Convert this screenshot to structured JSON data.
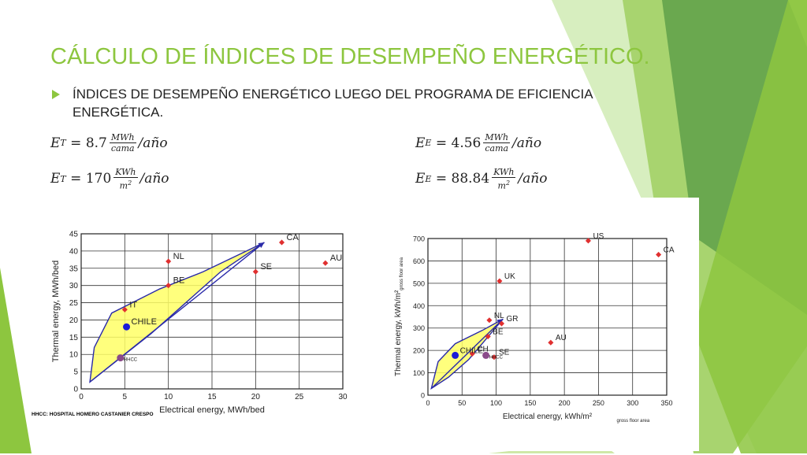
{
  "slide": {
    "title": "CÁLCULO DE ÍNDICES DE DESEMPEÑO ENERGÉTICO.",
    "bullet": "ÍNDICES DE DESEMPEÑO ENERGÉTICO LUEGO DEL PROGRAMA DE EFICIENCIA ENERGÉTICA.",
    "accent_color": "#8dc63f",
    "equations": [
      {
        "symbol": "E",
        "sub": "T",
        "value": "8.7",
        "num": "MWh",
        "den": "cama",
        "tail": "/año"
      },
      {
        "symbol": "E",
        "sub": "E",
        "value": "4.56",
        "num": "MWh",
        "den": "cama",
        "tail": "/año"
      },
      {
        "symbol": "E",
        "sub": "T",
        "value": "170",
        "num": "KWh",
        "den": "m2",
        "tail": "/año"
      },
      {
        "symbol": "E",
        "sub": "E",
        "value": "88.84",
        "num": "KWh",
        "den": "m2",
        "tail": "/año"
      }
    ],
    "footnote": "HHCC: HOSPITAL HOMERO CASTANIER CRESPO"
  },
  "chart_data": [
    {
      "type": "scatter",
      "xlabel": "Electrical energy, MWh/bed",
      "ylabel": "Thermal energy, MWh/bed",
      "xlim": [
        0,
        30
      ],
      "ylim": [
        0,
        45
      ],
      "xticks": [
        0,
        5,
        10,
        15,
        20,
        25,
        30
      ],
      "yticks": [
        0,
        5,
        10,
        15,
        20,
        25,
        30,
        35,
        40,
        45
      ],
      "grid": true,
      "points": [
        {
          "label": "CA",
          "x": 23,
          "y": 42.5,
          "color": "#e03030"
        },
        {
          "label": "AU",
          "x": 28,
          "y": 36.5,
          "color": "#e03030"
        },
        {
          "label": "NL",
          "x": 10,
          "y": 37,
          "color": "#e03030"
        },
        {
          "label": "SE",
          "x": 20,
          "y": 34,
          "color": "#e03030"
        },
        {
          "label": "BE",
          "x": 10,
          "y": 30,
          "color": "#e03030"
        },
        {
          "label": "IT",
          "x": 5,
          "y": 23,
          "color": "#e03030"
        },
        {
          "label": "CHILE",
          "x": 5.2,
          "y": 18,
          "color": "#1a1ad8"
        },
        {
          "label": "HHCC",
          "x": 4.5,
          "y": 9,
          "color": "#8a4a8a"
        }
      ],
      "diagonal": [
        [
          1,
          2
        ],
        [
          21,
          42.5
        ]
      ],
      "envelope": [
        [
          1,
          2
        ],
        [
          1.5,
          12
        ],
        [
          3.5,
          22
        ],
        [
          9,
          29
        ],
        [
          14,
          34
        ],
        [
          21,
          42.5
        ],
        [
          16,
          34
        ],
        [
          12,
          25
        ],
        [
          8,
          16
        ],
        [
          4.5,
          9
        ],
        [
          1,
          2
        ]
      ]
    },
    {
      "type": "scatter",
      "xlabel": "Electrical energy, kWh/m²",
      "xlabel_sub": "gross floor area",
      "ylabel": "Thermal energy, kWh/m²",
      "ylabel_sub": "gross floor area",
      "xlim": [
        0,
        350
      ],
      "ylim": [
        0,
        700
      ],
      "xticks": [
        0,
        50,
        100,
        150,
        200,
        250,
        300,
        350
      ],
      "yticks": [
        0,
        100,
        200,
        300,
        400,
        500,
        600,
        700
      ],
      "grid": true,
      "points": [
        {
          "label": "US",
          "x": 235,
          "y": 690,
          "color": "#e03030"
        },
        {
          "label": "CA",
          "x": 338,
          "y": 628,
          "color": "#e03030"
        },
        {
          "label": "UK",
          "x": 105,
          "y": 510,
          "color": "#e03030"
        },
        {
          "label": "NL",
          "x": 90,
          "y": 335,
          "color": "#e03030"
        },
        {
          "label": "GR",
          "x": 108,
          "y": 320,
          "color": "#e03030"
        },
        {
          "label": "BE",
          "x": 88,
          "y": 262,
          "color": "#e03030"
        },
        {
          "label": "AU",
          "x": 180,
          "y": 235,
          "color": "#e03030"
        },
        {
          "label": "SE",
          "x": 97,
          "y": 170,
          "color": "#e03030"
        },
        {
          "label": "CH",
          "x": 65,
          "y": 185,
          "color": "#e03030"
        },
        {
          "label": "CHILE",
          "x": 40,
          "y": 178,
          "color": "#1a1ad8"
        },
        {
          "label": "HHCC",
          "x": 85,
          "y": 178,
          "color": "#8a4a8a"
        }
      ],
      "diagonal": [
        [
          5,
          30
        ],
        [
          110,
          340
        ]
      ],
      "envelope": [
        [
          5,
          30
        ],
        [
          15,
          150
        ],
        [
          40,
          230
        ],
        [
          80,
          290
        ],
        [
          110,
          340
        ],
        [
          85,
          250
        ],
        [
          60,
          160
        ],
        [
          30,
          80
        ],
        [
          5,
          30
        ]
      ]
    }
  ]
}
